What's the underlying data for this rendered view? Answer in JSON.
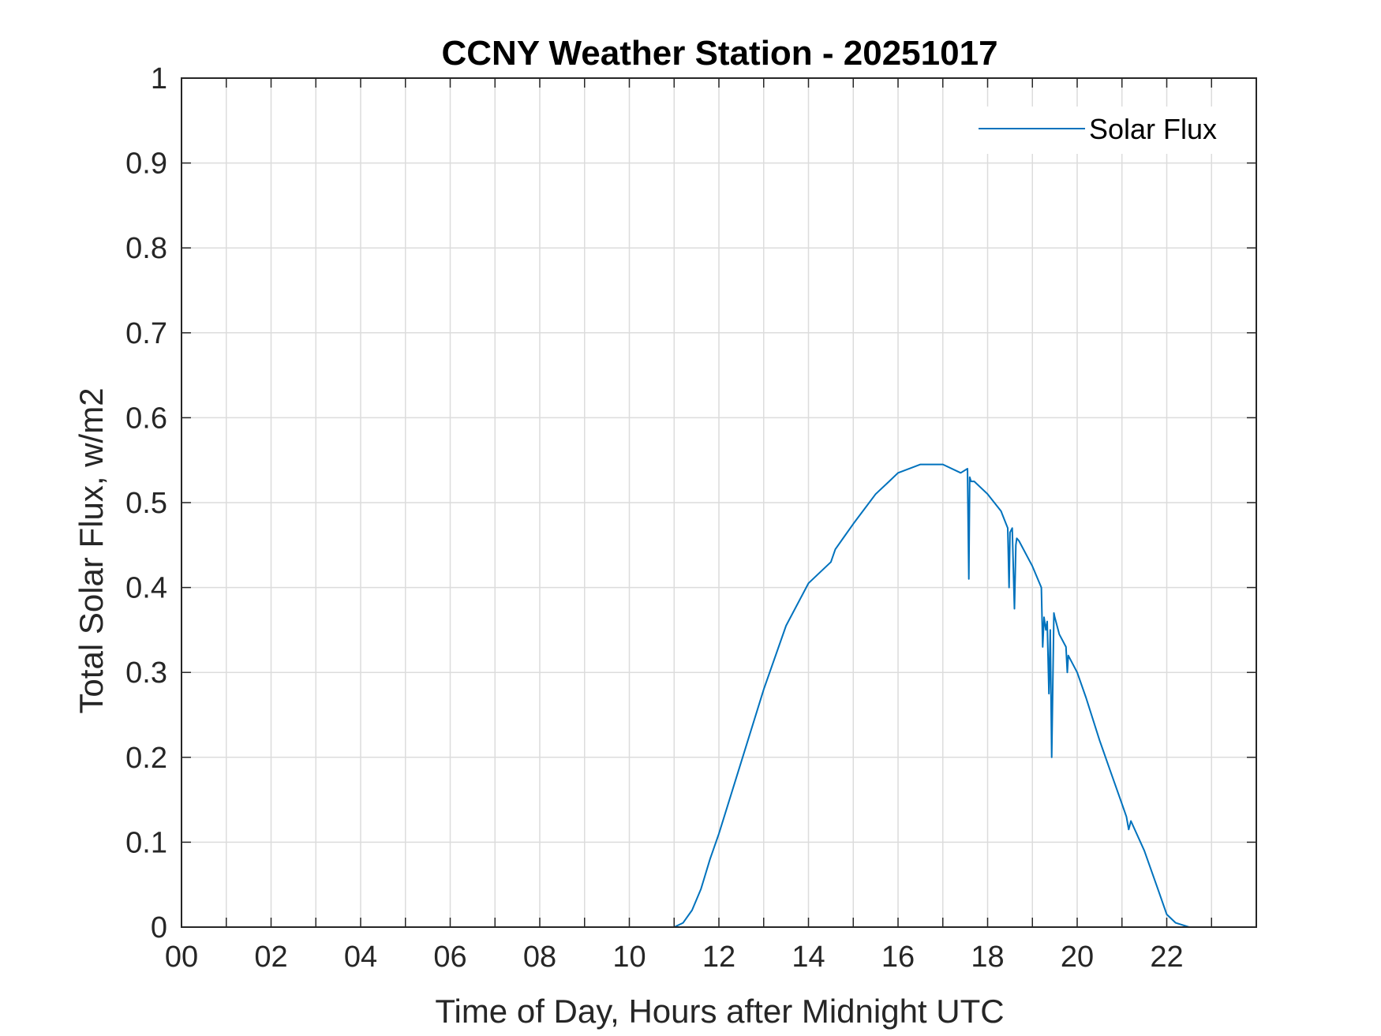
{
  "chart_data": {
    "type": "line",
    "title": "CCNY Weather Station - 20251017",
    "xlabel": "Time of Day, Hours after Midnight UTC",
    "ylabel": "Total Solar Flux, w/m2",
    "xlim": [
      0,
      24
    ],
    "ylim": [
      0,
      1
    ],
    "grid": true,
    "legend_position": "top-right",
    "x_ticks": [
      0,
      2,
      4,
      6,
      8,
      10,
      12,
      14,
      16,
      18,
      20,
      22
    ],
    "x_tick_labels": [
      "00",
      "02",
      "04",
      "06",
      "08",
      "10",
      "12",
      "14",
      "16",
      "18",
      "20",
      "22"
    ],
    "y_ticks": [
      0,
      0.1,
      0.2,
      0.3,
      0.4,
      0.5,
      0.6,
      0.7,
      0.8,
      0.9,
      1
    ],
    "y_tick_labels": [
      "0",
      "0.1",
      "0.2",
      "0.3",
      "0.4",
      "0.5",
      "0.6",
      "0.7",
      "0.8",
      "0.9",
      "1"
    ],
    "series": [
      {
        "name": "Solar Flux",
        "color": "#0072BD",
        "x": [
          0,
          11.0,
          11.2,
          11.4,
          11.6,
          11.8,
          12.0,
          12.5,
          13.0,
          13.5,
          14.0,
          14.4,
          14.5,
          14.6,
          14.8,
          15.0,
          15.5,
          15.8,
          16.0,
          16.5,
          17.0,
          17.4,
          17.55,
          17.58,
          17.6,
          17.63,
          17.7,
          18.0,
          18.3,
          18.45,
          18.48,
          18.5,
          18.55,
          18.6,
          18.63,
          18.65,
          18.7,
          19.0,
          19.2,
          19.23,
          19.26,
          19.3,
          19.33,
          19.37,
          19.4,
          19.43,
          19.48,
          19.5,
          19.6,
          19.75,
          19.78,
          19.8,
          20.0,
          20.2,
          20.5,
          20.7,
          21.0,
          21.1,
          21.15,
          21.2,
          21.5,
          21.8,
          22.0,
          22.2,
          22.5,
          24.0
        ],
        "values": [
          0,
          0,
          0.005,
          0.02,
          0.045,
          0.08,
          0.11,
          0.195,
          0.28,
          0.355,
          0.405,
          0.425,
          0.43,
          0.445,
          0.46,
          0.475,
          0.51,
          0.525,
          0.535,
          0.545,
          0.545,
          0.535,
          0.54,
          0.41,
          0.53,
          0.525,
          0.525,
          0.51,
          0.49,
          0.47,
          0.4,
          0.465,
          0.47,
          0.375,
          0.45,
          0.458,
          0.455,
          0.425,
          0.4,
          0.33,
          0.365,
          0.35,
          0.36,
          0.275,
          0.35,
          0.2,
          0.37,
          0.365,
          0.345,
          0.33,
          0.3,
          0.32,
          0.3,
          0.27,
          0.22,
          0.19,
          0.145,
          0.13,
          0.115,
          0.125,
          0.09,
          0.045,
          0.015,
          0.005,
          0,
          0
        ]
      }
    ]
  }
}
